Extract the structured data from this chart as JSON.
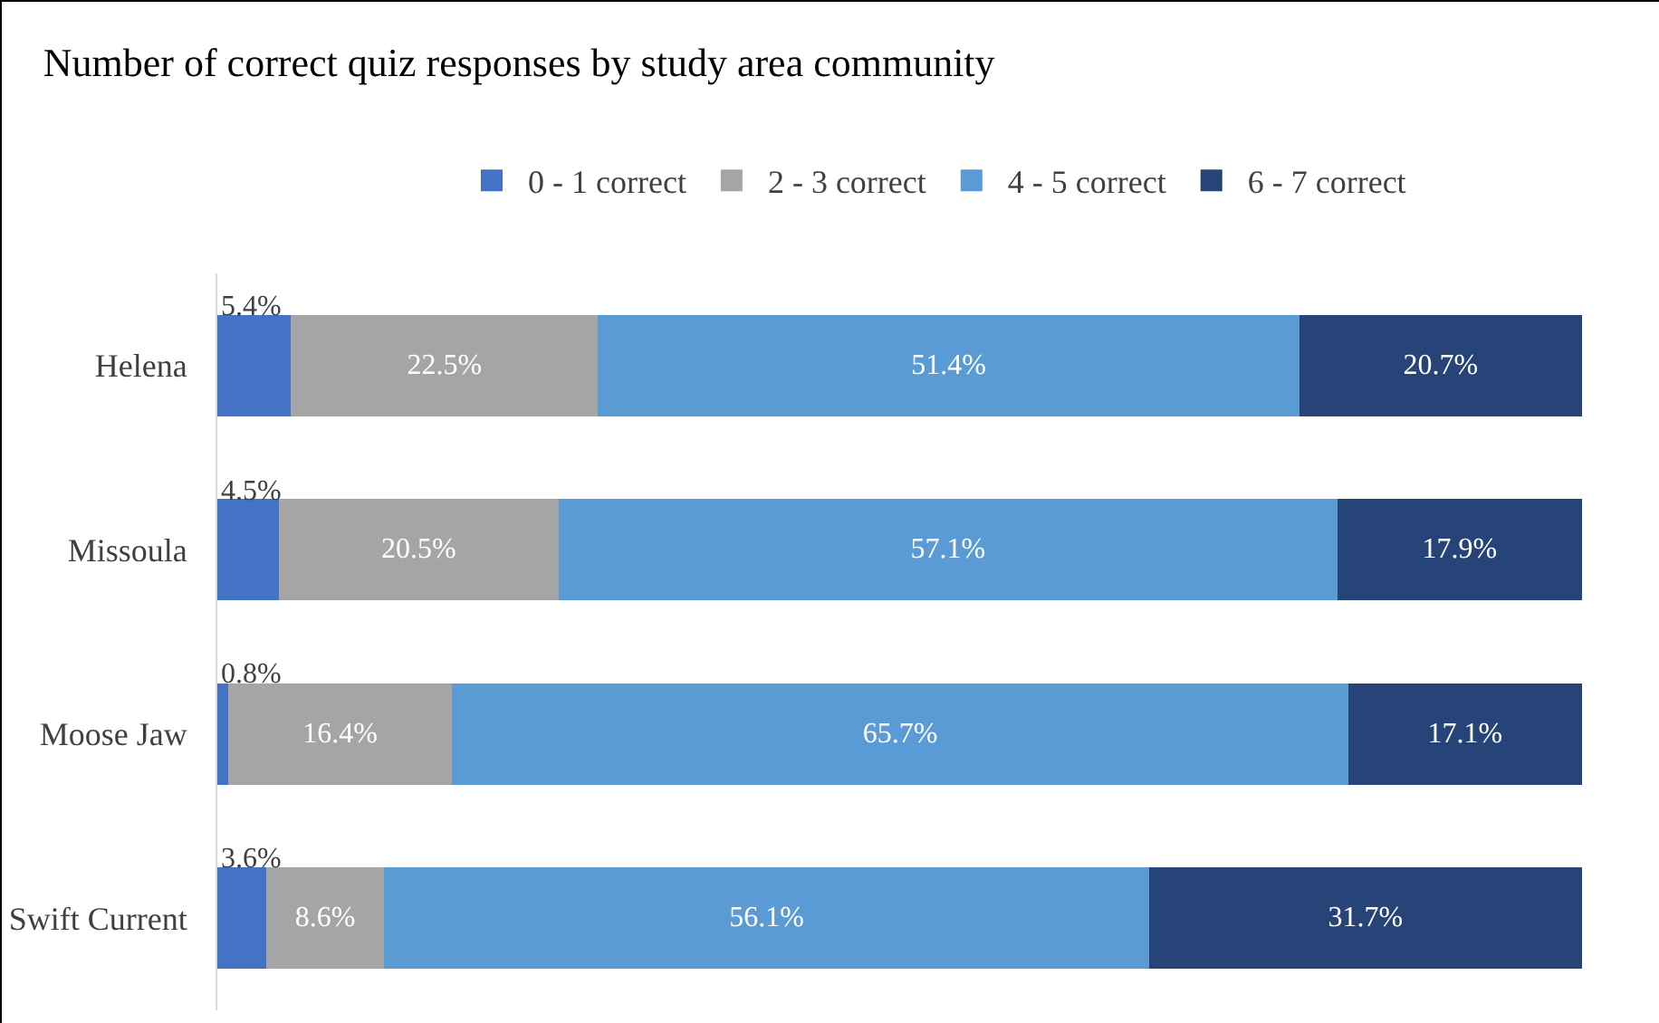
{
  "chart_data": {
    "type": "bar",
    "orientation": "horizontal",
    "stacked": true,
    "tick_labels": "y",
    "title": "Number of correct quiz responses by study area community",
    "categories": [
      "Helena",
      "Missoula",
      "Moose Jaw",
      "Swift Current"
    ],
    "series": [
      {
        "name": "0 - 1 correct",
        "color": "#4472c4",
        "values": [
          5.4,
          4.5,
          0.8,
          3.6
        ],
        "value_labels": [
          "5.4%",
          "4.5%",
          "0.8%",
          "3.6%"
        ]
      },
      {
        "name": "2 - 3 correct",
        "color": "#a5a5a5",
        "values": [
          22.5,
          20.5,
          16.4,
          8.6
        ],
        "value_labels": [
          "22.5%",
          "20.5%",
          "16.4%",
          "8.6%"
        ]
      },
      {
        "name": "4 - 5 correct",
        "color": "#5b9bd5",
        "values": [
          51.4,
          57.1,
          65.7,
          56.1
        ],
        "value_labels": [
          "51.4%",
          "57.1%",
          "65.7%",
          "56.1%"
        ]
      },
      {
        "name": "6 - 7 correct",
        "color": "#264478",
        "values": [
          20.7,
          17.9,
          17.1,
          31.7
        ],
        "value_labels": [
          "20.7%",
          "17.9%",
          "17.1%",
          "31.7%"
        ]
      }
    ],
    "legend": "top",
    "grid": false
  }
}
